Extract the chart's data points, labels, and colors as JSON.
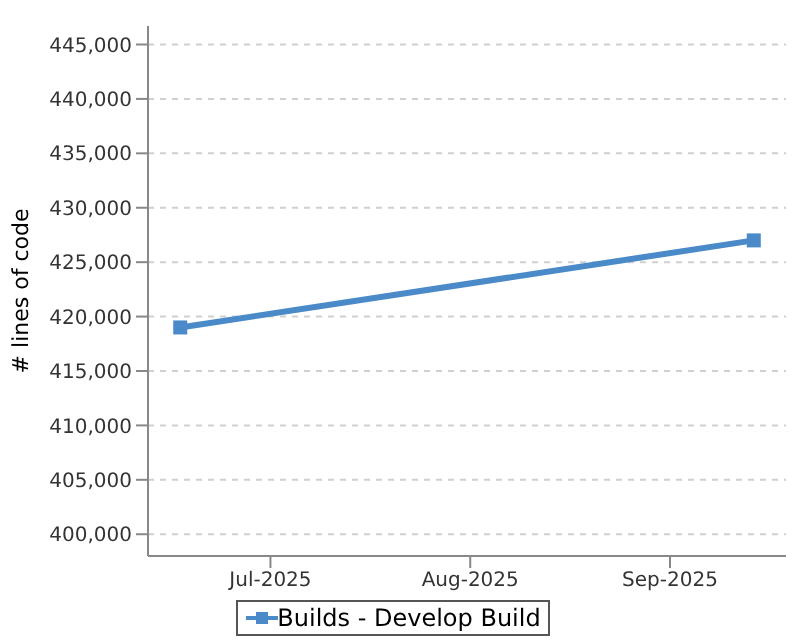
{
  "chart_data": {
    "type": "line",
    "ylabel": "# lines of code",
    "x": [
      "2025-06-17",
      "2025-09-14"
    ],
    "series": [
      {
        "name": "Builds - Develop Build",
        "color": "#4a8ac8",
        "values": [
          419000,
          427000
        ]
      }
    ],
    "xlim": [
      "2025-06-12",
      "2025-09-19"
    ],
    "xticks": [
      {
        "value": "2025-07-01",
        "label": "Jul-2025"
      },
      {
        "value": "2025-08-01",
        "label": "Aug-2025"
      },
      {
        "value": "2025-09-01",
        "label": "Sep-2025"
      }
    ],
    "ylim": [
      398000,
      446700
    ],
    "yticks": [
      {
        "value": 400000,
        "label": "400,000"
      },
      {
        "value": 405000,
        "label": "405,000"
      },
      {
        "value": 410000,
        "label": "410,000"
      },
      {
        "value": 415000,
        "label": "415,000"
      },
      {
        "value": 420000,
        "label": "420,000"
      },
      {
        "value": 425000,
        "label": "425,000"
      },
      {
        "value": 430000,
        "label": "430,000"
      },
      {
        "value": 435000,
        "label": "435,000"
      },
      {
        "value": 440000,
        "label": "440,000"
      },
      {
        "value": 445000,
        "label": "445,000"
      }
    ],
    "grid": "y",
    "marker": "square",
    "line_style": "solid",
    "legend": "bottom"
  }
}
